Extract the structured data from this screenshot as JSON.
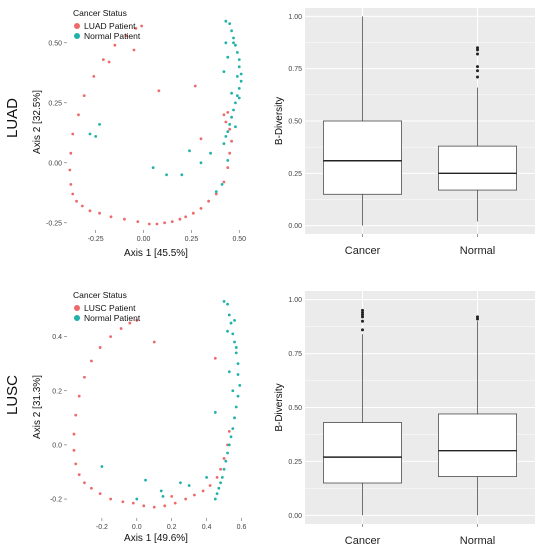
{
  "colors": {
    "cancer": "#EE6A6A",
    "normal": "#20B2AA",
    "panel_bg": "#EBEBEB",
    "grid": "#FFFFFF"
  },
  "rows": [
    {
      "label": "LUAD"
    },
    {
      "label": "LUSC"
    }
  ],
  "chart_data": [
    {
      "type": "scatter",
      "title": "",
      "row": "LUAD",
      "xlabel": "Axis 1  [45.5%]",
      "ylabel": "Axis 2  [32.5%]",
      "xlim": [
        -0.4,
        0.53
      ],
      "ylim": [
        -0.28,
        0.62
      ],
      "xticks": [
        -0.25,
        0.0,
        0.25,
        0.5
      ],
      "xtick_labels": [
        "-0.25",
        "0.00",
        "0.25",
        "0.50"
      ],
      "yticks": [
        -0.25,
        0.0,
        0.25,
        0.5
      ],
      "ytick_labels": [
        "-0.25",
        "0.00",
        "0.25",
        "0.50"
      ],
      "grid": false,
      "legend": {
        "title": "Cancer Status",
        "position": "top-left",
        "entries": [
          "LUAD Patient",
          "Normal Patient"
        ]
      },
      "series": [
        {
          "name": "LUAD Patient",
          "color": "#EE6A6A",
          "x": [
            -0.01,
            -0.04,
            -0.09,
            -0.15,
            -0.21,
            -0.26,
            -0.31,
            -0.34,
            -0.37,
            -0.38,
            -0.385,
            -0.38,
            -0.37,
            -0.35,
            -0.32,
            -0.28,
            -0.23,
            -0.17,
            -0.1,
            -0.03,
            0.03,
            0.07,
            0.11,
            0.15,
            0.19,
            0.22,
            0.26,
            0.3,
            0.34,
            0.38,
            0.42,
            0.44,
            0.45,
            0.46,
            0.45,
            0.43,
            0.42,
            -0.18,
            0.27,
            0.3,
            -0.05,
            0.08,
            0.44
          ],
          "y": [
            0.57,
            0.56,
            0.53,
            0.49,
            0.43,
            0.36,
            0.28,
            0.2,
            0.12,
            0.04,
            -0.03,
            -0.09,
            -0.13,
            -0.16,
            -0.18,
            -0.2,
            -0.21,
            -0.225,
            -0.235,
            -0.245,
            -0.255,
            -0.255,
            -0.25,
            -0.245,
            -0.235,
            -0.225,
            -0.21,
            -0.19,
            -0.16,
            -0.13,
            -0.08,
            -0.02,
            0.04,
            0.09,
            0.14,
            0.17,
            0.2,
            0.42,
            0.32,
            0.1,
            0.47,
            0.3,
            0.21
          ]
        },
        {
          "name": "Normal Patient",
          "color": "#20B2AA",
          "x": [
            0.43,
            0.45,
            0.46,
            0.47,
            0.48,
            0.49,
            0.5,
            0.5,
            0.51,
            0.51,
            0.5,
            0.49,
            0.48,
            0.47,
            0.46,
            0.45,
            0.44,
            0.43,
            0.42,
            0.44,
            0.47,
            0.49,
            0.5,
            0.48,
            0.43,
            0.3,
            0.24,
            0.2,
            0.12,
            0.05,
            -0.23,
            -0.28,
            -0.25,
            0.38,
            0.41,
            0.44,
            0.46,
            0.42,
            0.35
          ],
          "y": [
            0.59,
            0.58,
            0.55,
            0.52,
            0.49,
            0.46,
            0.43,
            0.4,
            0.37,
            0.34,
            0.31,
            0.28,
            0.25,
            0.22,
            0.19,
            0.16,
            0.13,
            0.11,
            0.08,
            0.44,
            0.5,
            0.36,
            0.27,
            0.15,
            0.5,
            0.0,
            0.05,
            -0.05,
            -0.05,
            -0.02,
            0.16,
            0.12,
            0.11,
            -0.12,
            -0.09,
            0.01,
            0.29,
            0.38,
            0.04
          ]
        }
      ]
    },
    {
      "type": "box",
      "title": "",
      "row": "LUAD",
      "xlabel": "",
      "ylabel": "B-Diversity",
      "ylim": [
        -0.04,
        1.04
      ],
      "yticks": [
        0.0,
        0.25,
        0.5,
        0.75,
        1.0
      ],
      "ytick_labels": [
        "0.00",
        "0.25",
        "0.50",
        "0.75",
        "1.00"
      ],
      "categories": [
        "Cancer",
        "Normal"
      ],
      "boxes": [
        {
          "category": "Cancer",
          "min": 0.0,
          "q1": 0.15,
          "median": 0.31,
          "q3": 0.5,
          "max": 1.0,
          "outliers": []
        },
        {
          "category": "Normal",
          "min": 0.02,
          "q1": 0.17,
          "median": 0.25,
          "q3": 0.38,
          "max": 0.66,
          "outliers": [
            0.71,
            0.74,
            0.76,
            0.82,
            0.84,
            0.85
          ]
        }
      ]
    },
    {
      "type": "scatter",
      "title": "",
      "row": "LUSC",
      "xlabel": "Axis 1  [49.6%]",
      "ylabel": "Axis 2  [31.3%]",
      "xlim": [
        -0.4,
        0.62
      ],
      "ylim": [
        -0.27,
        0.55
      ],
      "xticks": [
        -0.2,
        0.0,
        0.2,
        0.4,
        0.6
      ],
      "xtick_labels": [
        "-0.2",
        "0.0",
        "0.2",
        "0.4",
        "0.6"
      ],
      "yticks": [
        -0.2,
        0.0,
        0.2,
        0.4
      ],
      "ytick_labels": [
        "-0.2",
        "0.0",
        "0.2",
        "0.4"
      ],
      "grid": false,
      "legend": {
        "title": "Cancer Status",
        "position": "top-left",
        "entries": [
          "LUSC Patient",
          "Normal Patient"
        ]
      },
      "series": [
        {
          "name": "LUSC Patient",
          "color": "#EE6A6A",
          "x": [
            0.0,
            -0.04,
            -0.09,
            -0.15,
            -0.21,
            -0.26,
            -0.3,
            -0.33,
            -0.35,
            -0.36,
            -0.36,
            -0.35,
            -0.33,
            -0.3,
            -0.26,
            -0.21,
            -0.15,
            -0.08,
            -0.02,
            0.04,
            0.1,
            0.16,
            0.22,
            0.28,
            0.33,
            0.38,
            0.42,
            0.46,
            0.48,
            0.5,
            0.52,
            0.53,
            0.1,
            0.45,
            0.2
          ],
          "y": [
            0.46,
            0.45,
            0.43,
            0.4,
            0.36,
            0.31,
            0.25,
            0.18,
            0.11,
            0.04,
            -0.02,
            -0.07,
            -0.11,
            -0.14,
            -0.16,
            -0.18,
            -0.2,
            -0.21,
            -0.215,
            -0.225,
            -0.23,
            -0.225,
            -0.215,
            -0.2,
            -0.185,
            -0.17,
            -0.15,
            -0.12,
            -0.09,
            -0.05,
            0.0,
            0.05,
            0.38,
            0.32,
            -0.19
          ]
        },
        {
          "name": "Normal Patient",
          "color": "#20B2AA",
          "x": [
            0.5,
            0.52,
            0.53,
            0.54,
            0.55,
            0.56,
            0.57,
            0.58,
            0.58,
            0.59,
            0.58,
            0.57,
            0.56,
            0.55,
            0.54,
            0.53,
            0.52,
            0.51,
            0.5,
            0.49,
            0.48,
            0.47,
            0.46,
            0.45,
            0.56,
            0.52,
            0.55,
            0.3,
            0.25,
            0.14,
            0.05,
            0.0,
            -0.2,
            0.15,
            0.4,
            0.45,
            0.53,
            0.57
          ],
          "y": [
            0.53,
            0.52,
            0.48,
            0.45,
            0.41,
            0.38,
            0.34,
            0.3,
            0.26,
            0.22,
            0.18,
            0.14,
            0.1,
            0.06,
            0.03,
            0.0,
            -0.03,
            -0.06,
            -0.09,
            -0.12,
            -0.14,
            -0.16,
            -0.18,
            -0.2,
            0.46,
            0.42,
            0.2,
            -0.15,
            -0.14,
            -0.17,
            -0.13,
            -0.2,
            -0.08,
            -0.19,
            -0.12,
            0.12,
            0.27,
            0.36
          ]
        }
      ]
    },
    {
      "type": "box",
      "title": "",
      "row": "LUSC",
      "xlabel": "",
      "ylabel": "B-Diversity",
      "ylim": [
        -0.04,
        1.04
      ],
      "yticks": [
        0.0,
        0.25,
        0.5,
        0.75,
        1.0
      ],
      "ytick_labels": [
        "0.00",
        "0.25",
        "0.50",
        "0.75",
        "1.00"
      ],
      "categories": [
        "Cancer",
        "Normal"
      ],
      "boxes": [
        {
          "category": "Cancer",
          "min": 0.0,
          "q1": 0.15,
          "median": 0.27,
          "q3": 0.43,
          "max": 0.84,
          "outliers": [
            0.86,
            0.9,
            0.92,
            0.93,
            0.94,
            0.95
          ]
        },
        {
          "category": "Normal",
          "min": 0.0,
          "q1": 0.18,
          "median": 0.3,
          "q3": 0.47,
          "max": 0.9,
          "outliers": [
            0.91,
            0.92
          ]
        }
      ]
    }
  ]
}
